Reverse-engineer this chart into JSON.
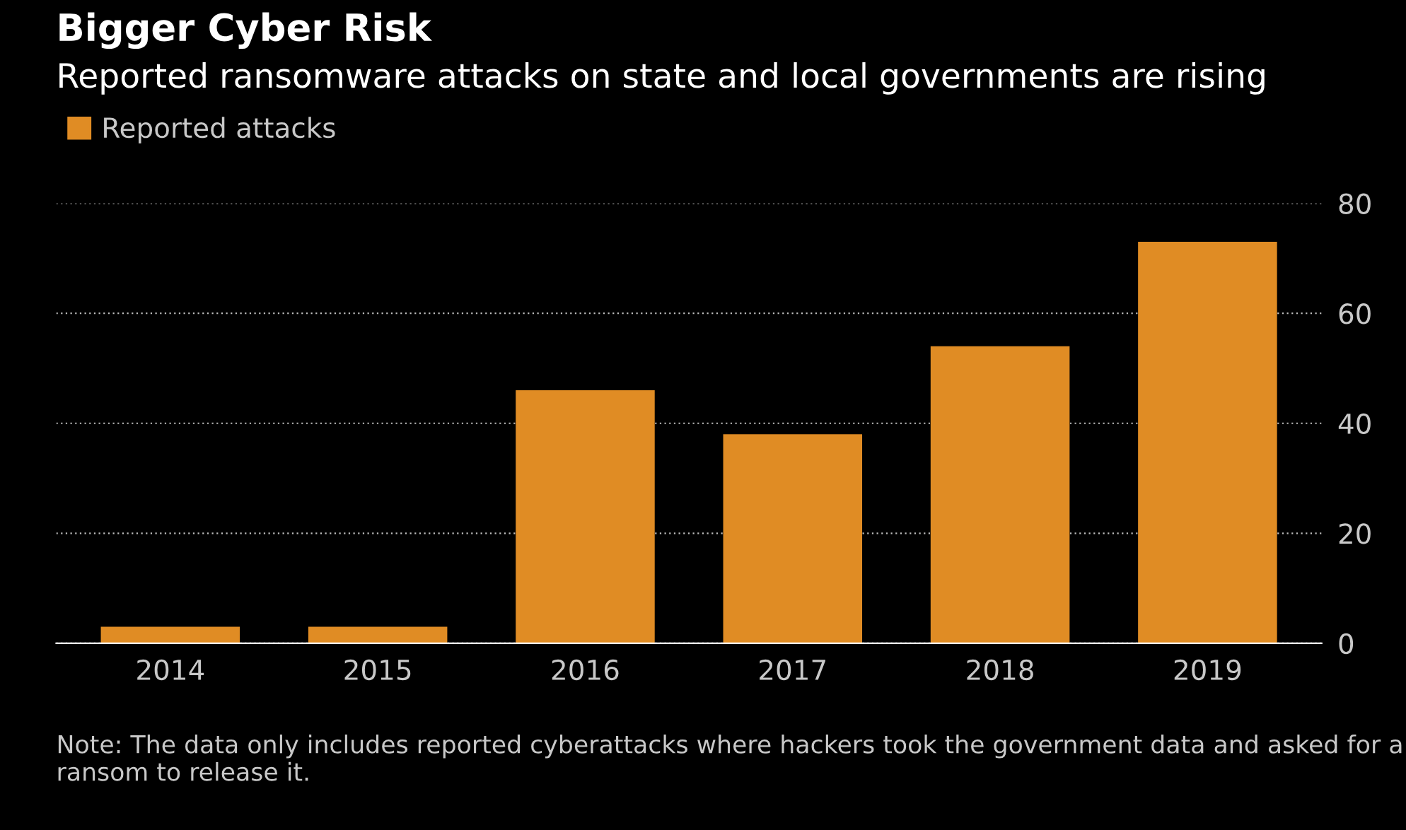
{
  "chart_data": {
    "type": "bar",
    "title": "Bigger Cyber Risk",
    "subtitle": "Reported ransomware attacks on state and local governments are rising",
    "categories": [
      "2014",
      "2015",
      "2016",
      "2017",
      "2018",
      "2019"
    ],
    "series": [
      {
        "name": "Reported attacks",
        "color": "#e08c24",
        "values": [
          3,
          3,
          46,
          38,
          54,
          73
        ]
      }
    ],
    "ylim": [
      0,
      80
    ],
    "yticks": [
      0,
      20,
      40,
      60,
      80
    ],
    "grid": "y",
    "legend": "top left",
    "annotations": [
      "Note: The data only includes reported cyberattacks where hackers took the government data and asked for a ransom to release it."
    ]
  }
}
